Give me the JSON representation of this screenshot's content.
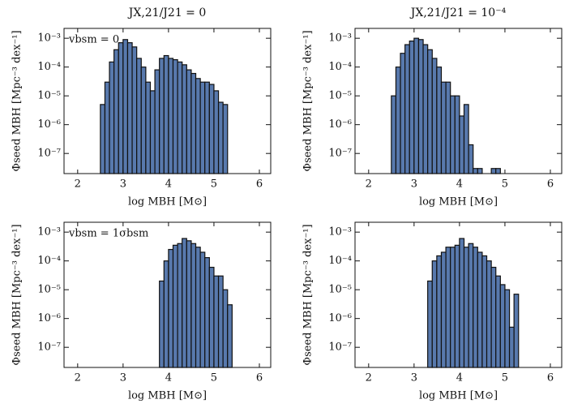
{
  "chart_data": [
    {
      "type": "histogram",
      "title": "JX,21/J21 = 0",
      "annotation": "vbsm = 0",
      "xlabel": "log MBH [M⊙]",
      "ylabel": "Φseed MBH [Mpc⁻³ dex⁻¹]",
      "bins": [
        2.5,
        2.6,
        2.7,
        2.8,
        2.9,
        3.0,
        3.1,
        3.2,
        3.3,
        3.4,
        3.5,
        3.6,
        3.7,
        3.8,
        3.9,
        4.0,
        4.1,
        4.2,
        4.3,
        4.4,
        4.5,
        4.6,
        4.7,
        4.8,
        4.9,
        5.0,
        5.1,
        5.2,
        5.3
      ],
      "values": [
        5e-06,
        3e-05,
        0.00015,
        0.0004,
        0.0007,
        0.0009,
        0.0007,
        0.0005,
        0.0002,
        0.0001,
        3e-05,
        1.5e-05,
        8e-05,
        0.0002,
        0.00025,
        0.0002,
        0.00018,
        0.00015,
        0.00012,
        8e-05,
        6e-05,
        4e-05,
        3e-05,
        3e-05,
        2.5e-05,
        1.5e-05,
        6e-06,
        5e-06
      ],
      "color": "#5879ad",
      "edgecolor": "#111111",
      "log_y": true,
      "xlim": [
        1.7,
        6.25
      ],
      "xticks": [
        2,
        3,
        4,
        5,
        6
      ],
      "ylim": [
        2e-08,
        0.0022
      ],
      "yticks": [
        {
          "value": 1e-07,
          "label": "10⁻⁷"
        },
        {
          "value": 1e-06,
          "label": "10⁻⁶"
        },
        {
          "value": 1e-05,
          "label": "10⁻⁵"
        },
        {
          "value": 0.0001,
          "label": "10⁻⁴"
        },
        {
          "value": 0.001,
          "label": "10⁻³"
        }
      ]
    },
    {
      "type": "histogram",
      "title": "JX,21/J21 = 10⁻⁴",
      "xlabel": "log MBH [M⊙]",
      "ylabel": "Φseed MBH [Mpc⁻³ dex⁻¹]",
      "bins": [
        2.5,
        2.6,
        2.7,
        2.8,
        2.9,
        3.0,
        3.1,
        3.2,
        3.3,
        3.4,
        3.5,
        3.6,
        3.7,
        3.8,
        3.9,
        4.0,
        4.1,
        4.2,
        4.3,
        4.4,
        4.5,
        4.6,
        4.7,
        4.8,
        4.9
      ],
      "values": [
        1e-05,
        0.0001,
        0.0003,
        0.0006,
        0.0008,
        0.001,
        0.0009,
        0.0006,
        0.0004,
        0.0002,
        0.0001,
        3e-05,
        3e-05,
        1e-05,
        1e-05,
        2e-06,
        5e-06,
        2e-07,
        3e-08,
        3e-08,
        null,
        null,
        3e-08,
        3e-08
      ],
      "color": "#5879ad",
      "edgecolor": "#111111",
      "log_y": true,
      "xlim": [
        1.7,
        6.25
      ],
      "xticks": [
        2,
        3,
        4,
        5,
        6
      ],
      "ylim": [
        2e-08,
        0.0022
      ],
      "yticks": [
        {
          "value": 1e-07,
          "label": "10⁻⁷"
        },
        {
          "value": 1e-06,
          "label": "10⁻⁶"
        },
        {
          "value": 1e-05,
          "label": "10⁻⁵"
        },
        {
          "value": 0.0001,
          "label": "10⁻⁴"
        },
        {
          "value": 0.001,
          "label": "10⁻³"
        }
      ]
    },
    {
      "type": "histogram",
      "annotation": "vbsm = 1σbsm",
      "xlabel": "log MBH [M⊙]",
      "ylabel": "Φseed MBH [Mpc⁻³ dex⁻¹]",
      "bins": [
        3.8,
        3.9,
        4.0,
        4.1,
        4.2,
        4.3,
        4.4,
        4.5,
        4.6,
        4.7,
        4.8,
        4.9,
        5.0,
        5.1,
        5.2,
        5.3,
        5.4
      ],
      "values": [
        2e-05,
        0.0001,
        0.00025,
        0.00035,
        0.0004,
        0.0006,
        0.0005,
        0.0004,
        0.0003,
        0.0002,
        0.00013,
        6e-05,
        3e-05,
        3e-05,
        1e-05,
        3e-06
      ],
      "color": "#5879ad",
      "edgecolor": "#111111",
      "log_y": true,
      "xlim": [
        1.7,
        6.25
      ],
      "xticks": [
        2,
        3,
        4,
        5,
        6
      ],
      "ylim": [
        2e-08,
        0.0022
      ],
      "yticks": [
        {
          "value": 1e-07,
          "label": "10⁻⁷"
        },
        {
          "value": 1e-06,
          "label": "10⁻⁶"
        },
        {
          "value": 1e-05,
          "label": "10⁻⁵"
        },
        {
          "value": 0.0001,
          "label": "10⁻⁴"
        },
        {
          "value": 0.001,
          "label": "10⁻³"
        }
      ]
    },
    {
      "type": "histogram",
      "xlabel": "log MBH [M⊙]",
      "ylabel": "Φseed MBH [Mpc⁻³ dex⁻¹]",
      "bins": [
        3.3,
        3.4,
        3.5,
        3.6,
        3.7,
        3.8,
        3.9,
        4.0,
        4.1,
        4.2,
        4.3,
        4.4,
        4.5,
        4.6,
        4.7,
        4.8,
        4.9,
        5.0,
        5.1,
        5.2,
        5.3
      ],
      "values": [
        2e-05,
        0.0001,
        0.00015,
        0.0002,
        0.0003,
        0.0003,
        0.00035,
        0.0006,
        0.0003,
        0.0004,
        0.0003,
        0.0002,
        0.00015,
        0.0001,
        6e-05,
        3e-05,
        1.5e-05,
        1e-05,
        5e-07,
        7e-06
      ],
      "color": "#5879ad",
      "edgecolor": "#111111",
      "log_y": true,
      "xlim": [
        1.7,
        6.25
      ],
      "xticks": [
        2,
        3,
        4,
        5,
        6
      ],
      "ylim": [
        2e-08,
        0.0022
      ],
      "yticks": [
        {
          "value": 1e-07,
          "label": "10⁻⁷"
        },
        {
          "value": 1e-06,
          "label": "10⁻⁶"
        },
        {
          "value": 1e-05,
          "label": "10⁻⁵"
        },
        {
          "value": 0.0001,
          "label": "10⁻⁴"
        },
        {
          "value": 0.001,
          "label": "10⁻³"
        }
      ]
    }
  ]
}
